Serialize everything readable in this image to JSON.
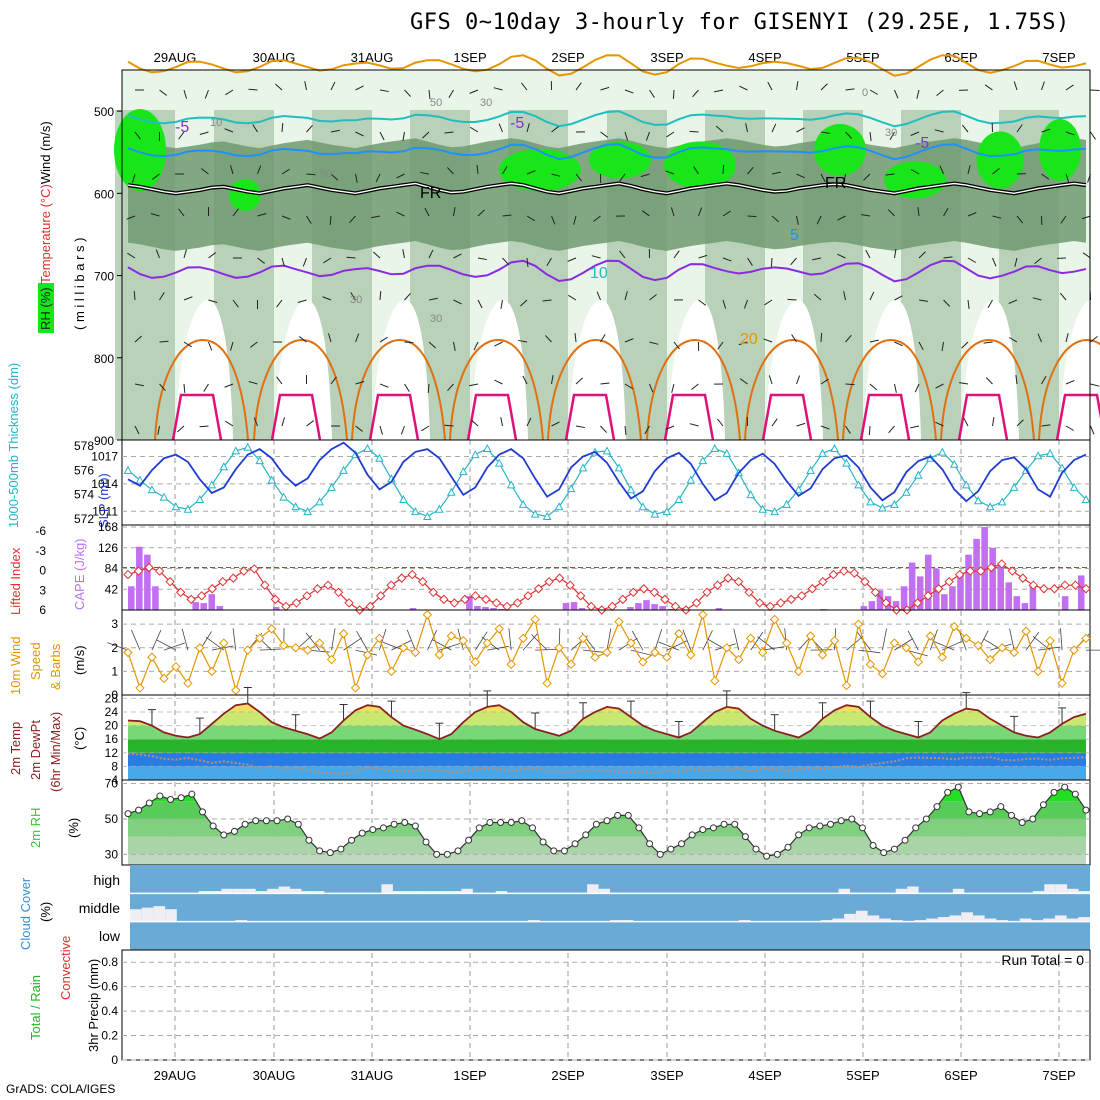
{
  "title": "GFS 0~10day 3-hourly for GISENYI (29.25E, 1.75S)",
  "credit": "GrADS: COLA/IGES",
  "colors": {
    "rh_dark": "#18e618",
    "rh_mid": "#73b573",
    "temp_neg": "#8a2be2",
    "freezing": "#000000",
    "temp5": "#1e90ff",
    "temp10": "#1fbfbf",
    "temp20": "#e69500",
    "temp30": "#e07010",
    "slp": "#1e3cd2",
    "thickness": "#27b5c7",
    "cape": "#c070f0",
    "lifted": "#e03030",
    "wind10m": "#e69500",
    "temp2m": "#8b2020",
    "dew2m": "#707070",
    "rh2m": "#2ecc2e",
    "cloud": "#6aaad6",
    "cloud_clear": "#eeeef4"
  },
  "chart_data": [
    {
      "type": "heatmap",
      "name": "upper-air",
      "x_dates": [
        "29AUG",
        "30AUG",
        "31AUG",
        "1SEP",
        "2SEP",
        "3SEP",
        "4SEP",
        "5SEP",
        "6SEP",
        "7SEP"
      ],
      "ylim": [
        900,
        450
      ],
      "yticks": [
        500,
        600,
        700,
        800,
        900
      ],
      "ylabel_parts": [
        "RH (%)",
        "Temperature (°C)",
        "Wind (m/s)"
      ],
      "ylabel_unit": "( m i l l i b a r s )",
      "contour_labels": [
        "-5",
        "-5",
        "-5",
        "FR",
        "FR",
        "5",
        "10",
        "20",
        "50",
        "30",
        "10",
        "30",
        "50",
        "30",
        "30",
        "0"
      ],
      "freezing_level_mb": [
        590,
        592,
        595,
        598,
        600,
        598,
        596,
        593,
        592,
        595,
        598,
        600,
        597,
        594,
        592,
        590,
        593,
        596,
        598,
        600,
        597,
        594,
        592,
        590,
        588,
        592,
        596,
        599,
        598,
        595,
        592,
        590,
        588,
        590,
        594,
        598,
        600,
        597,
        594,
        592,
        590,
        588,
        591,
        595,
        598,
        600,
        597,
        594,
        592,
        590,
        588,
        590,
        593,
        596,
        598,
        597,
        594,
        592,
        590,
        589,
        590,
        593,
        596,
        598,
        600,
        597,
        594,
        592,
        590,
        588,
        590,
        593,
        596,
        598,
        600,
        597,
        594,
        592,
        590,
        588,
        590
      ]
    },
    {
      "type": "line",
      "name": "slp-thickness",
      "ylabel_left": "1000-500mb Thickness (dm)",
      "ylabel_right": "SLP (mb)",
      "yticks_thickness": [
        572,
        574,
        576,
        578
      ],
      "yticks_slp": [
        1011,
        1014,
        1017
      ],
      "series": [
        {
          "name": "SLP",
          "values": [
            1014.5,
            1013.8,
            1015.5,
            1016.8,
            1017.2,
            1016.4,
            1014.5,
            1013.0,
            1013.6,
            1015.6,
            1017.2,
            1017.8,
            1016.8,
            1015.0,
            1013.8,
            1014.6,
            1016.6,
            1017.8,
            1018.5,
            1017.4,
            1015.0,
            1013.4,
            1014.2,
            1016.4,
            1017.5,
            1017.8,
            1016.8,
            1014.8,
            1012.8,
            1013.6,
            1015.8,
            1017.2,
            1017.8,
            1016.8,
            1014.6,
            1012.6,
            1013.4,
            1015.8,
            1017.0,
            1017.5,
            1016.3,
            1014.2,
            1012.4,
            1013.2,
            1015.4,
            1016.8,
            1017.4,
            1016.2,
            1014.0,
            1012.2,
            1013.0,
            1015.2,
            1016.6,
            1017.3,
            1016.2,
            1014.3,
            1012.7,
            1013.5,
            1015.6,
            1016.8,
            1017.1,
            1015.8,
            1013.6,
            1012.2,
            1013.1,
            1015.3,
            1016.5,
            1017.0,
            1015.6,
            1013.4,
            1012.1,
            1013.2,
            1015.4,
            1016.6,
            1016.9,
            1015.6,
            1013.4,
            1012.6,
            1015.2,
            1016.6,
            1017.2
          ]
        },
        {
          "name": "Thickness",
          "values": [
            576.0,
            575.2,
            574.4,
            573.8,
            573.0,
            572.8,
            573.6,
            574.8,
            576.3,
            577.6,
            577.9,
            576.8,
            575.2,
            573.8,
            573.0,
            572.6,
            573.4,
            574.6,
            576.0,
            577.3,
            577.8,
            577.0,
            575.3,
            573.6,
            572.6,
            572.2,
            572.8,
            574.2,
            575.9,
            577.3,
            577.8,
            576.6,
            574.8,
            573.2,
            572.4,
            572.2,
            573.0,
            574.5,
            576.2,
            577.5,
            577.6,
            576.2,
            574.4,
            573.0,
            572.4,
            572.6,
            573.6,
            575.2,
            576.8,
            577.8,
            577.4,
            575.8,
            574.0,
            572.8,
            572.6,
            573.2,
            574.4,
            576.0,
            577.4,
            577.8,
            576.6,
            574.8,
            573.4,
            572.9,
            573.2,
            574.2,
            575.6,
            577.0,
            577.5,
            576.5,
            574.8,
            573.5,
            573.0,
            573.4,
            574.6,
            576.0,
            577.2,
            577.4,
            576.2,
            574.6,
            573.6
          ]
        }
      ]
    },
    {
      "type": "bar",
      "name": "cape-lifted-index",
      "ylabel_left": "Lifted Index",
      "ylabel_right": "CAPE (J/kg)",
      "yticks_li": [
        "-6",
        "-3",
        "0",
        "3",
        "6"
      ],
      "yticks_cape": [
        42,
        84,
        126,
        168
      ],
      "cape": [
        48,
        128,
        112,
        48,
        0,
        0,
        0,
        0,
        16,
        14,
        32,
        8,
        0,
        0,
        0,
        0,
        0,
        0,
        6,
        0,
        0,
        0,
        0,
        0,
        0,
        0,
        0,
        0,
        0,
        0,
        0,
        0,
        0,
        0,
        0,
        4,
        0,
        0,
        0,
        0,
        0,
        0,
        28,
        8,
        6,
        4,
        2,
        0,
        0,
        0,
        0,
        0,
        0,
        0,
        14,
        16,
        4,
        0,
        0,
        0,
        0,
        0,
        6,
        14,
        20,
        12,
        8,
        2,
        0,
        0,
        0,
        0,
        0,
        4,
        0,
        0,
        0,
        0,
        0,
        0,
        0,
        0,
        0,
        0,
        0,
        0,
        2,
        0,
        0,
        0,
        0,
        8,
        18,
        40,
        28,
        18,
        48,
        96,
        68,
        112,
        84,
        32,
        48,
        76,
        112,
        144,
        168,
        126,
        96,
        56,
        28,
        14,
        48,
        0,
        0,
        0,
        28,
        0,
        70
      ],
      "lifted": [
        1.0,
        0.5,
        0.0,
        0.5,
        2.0,
        3.5,
        4.5,
        4.0,
        3.0,
        2.0,
        1.5,
        0.5,
        0.2,
        2.5,
        4.5,
        5.5,
        5.0,
        4.0,
        3.0,
        2.5,
        3.5,
        5.0,
        6.0,
        5.5,
        4.0,
        2.5,
        1.5,
        1.0,
        2.0,
        3.5,
        4.5,
        5.0,
        4.5,
        4.0,
        4.5,
        5.0,
        5.5,
        5.0,
        4.0,
        3.0,
        2.0,
        1.5,
        2.5,
        4.0,
        5.5,
        6.0,
        5.5,
        4.5,
        3.5,
        3.0,
        3.5,
        4.5,
        5.5,
        6.0,
        5.0,
        3.5,
        2.5,
        1.5,
        2.0,
        3.5,
        5.0,
        5.5,
        5.0,
        4.5,
        4.0,
        3.0,
        2.0,
        1.0,
        0.5,
        0.8,
        2.0,
        3.5,
        5.0,
        6.0,
        6.0,
        5.0,
        4.0,
        3.0,
        2.0,
        1.0,
        0.5,
        0.5,
        0.0,
        -0.5,
        0.5,
        1.5,
        2.5,
        3.0,
        3.0,
        2.5,
        2.5,
        3.0
      ]
    },
    {
      "type": "line",
      "name": "wind-10m",
      "ylabel": "10m Wind Speed & Barbs (m/s)",
      "yticks": [
        0,
        1,
        2,
        3
      ],
      "ylim": [
        0,
        3.6
      ],
      "values": [
        1.8,
        0.3,
        1.6,
        0.7,
        1.2,
        0.5,
        2.0,
        1.0,
        2.2,
        0.2,
        1.9,
        2.4,
        2.8,
        2.1,
        2.0,
        1.9,
        2.2,
        1.5,
        2.6,
        0.3,
        1.7,
        2.4,
        1.0,
        2.0,
        1.8,
        3.4,
        1.7,
        2.5,
        2.3,
        1.4,
        2.2,
        2.8,
        1.3,
        2.4,
        3.2,
        0.5,
        2.0,
        1.3,
        2.4,
        1.6,
        1.8,
        3.1,
        2.2,
        1.4,
        1.8,
        1.6,
        2.6,
        1.7,
        3.4,
        0.6,
        2.0,
        1.5,
        2.4,
        1.8,
        3.2,
        2.2,
        1.0,
        2.5,
        1.7,
        2.3,
        0.4,
        3.0,
        1.3,
        0.9,
        2.2,
        2.0,
        1.4,
        2.5,
        1.6,
        2.9,
        2.4,
        2.1,
        1.5,
        2.0,
        1.8,
        2.7,
        1.0,
        2.3,
        0.5,
        1.9,
        2.4
      ]
    },
    {
      "type": "area",
      "name": "temp-2m",
      "ylabel": "2m Temp 2m DewPt (6hr Min/Max) (°C)",
      "yticks": [
        4,
        8,
        12,
        16,
        20,
        24,
        28
      ],
      "ylim": [
        4,
        29
      ],
      "temp": [
        21.5,
        21.3,
        20.0,
        18.0,
        17.0,
        16.5,
        17.5,
        20.5,
        23.5,
        26.0,
        26.5,
        24.0,
        21.0,
        19.5,
        18.5,
        17.5,
        16.2,
        18.0,
        21.5,
        24.5,
        26.0,
        25.5,
        22.5,
        20.0,
        18.8,
        17.5,
        16.0,
        17.5,
        21.0,
        24.0,
        25.5,
        26.0,
        24.0,
        21.0,
        19.0,
        18.0,
        17.0,
        18.5,
        22.0,
        24.0,
        25.5,
        25.0,
        22.5,
        20.0,
        18.5,
        17.5,
        16.5,
        18.0,
        21.0,
        24.0,
        25.5,
        25.0,
        22.0,
        20.0,
        18.5,
        17.5,
        16.5,
        18.5,
        22.0,
        24.5,
        26.0,
        25.5,
        22.5,
        20.0,
        18.5,
        17.5,
        16.5,
        18.0,
        21.5,
        23.5,
        25.0,
        24.5,
        22.0,
        20.0,
        18.0,
        17.0,
        16.5,
        18.0,
        20.5,
        22.5,
        23.5
      ],
      "dewpt": [
        11.8,
        11.5,
        11.0,
        10.2,
        10.0,
        10.5,
        9.8,
        9.0,
        9.5,
        9.0,
        8.5,
        7.5,
        8.0,
        7.4,
        7.6,
        6.8,
        6.2,
        6.0,
        5.8,
        6.5,
        7.8,
        7.2,
        6.8,
        6.5,
        6.8,
        7.1,
        6.9,
        6.2,
        6.5,
        7.2,
        7.5,
        7.2,
        6.6,
        7.2,
        7.5,
        6.6,
        6.4,
        6.3,
        6.9,
        7.0,
        6.8,
        6.5,
        6.2,
        6.6,
        6.0,
        6.8,
        6.4,
        7.5,
        6.8,
        7.1,
        6.9,
        7.4,
        6.6,
        7.4,
        7.3,
        6.5,
        7.3,
        7.6,
        7.2,
        7.8,
        8.2,
        7.8,
        8.6,
        9.0,
        9.5,
        10.4,
        10.6,
        10.5,
        10.4,
        10.1,
        10.6,
        10.5,
        10.7,
        9.9,
        9.8,
        10.2,
        10.3,
        9.9,
        10.4,
        10.5,
        10.7
      ]
    },
    {
      "type": "area",
      "name": "rh-2m",
      "ylabel": "2m RH (%)",
      "yticks": [
        30,
        50,
        70
      ],
      "ylim": [
        24,
        72
      ],
      "values": [
        53,
        55,
        59,
        63,
        61,
        62,
        64,
        54,
        46,
        41,
        43,
        47,
        49,
        49,
        49,
        50,
        47,
        38,
        32,
        31,
        33,
        38,
        42,
        44,
        45,
        47,
        48,
        46,
        37,
        30,
        30,
        32,
        38,
        45,
        48,
        48,
        48,
        49,
        45,
        37,
        32,
        32,
        36,
        41,
        47,
        49,
        52,
        52,
        45,
        36,
        30,
        33,
        36,
        41,
        44,
        45,
        47,
        47,
        40,
        33,
        29,
        30,
        34,
        41,
        45,
        46,
        47,
        49,
        50,
        45,
        35,
        31,
        33,
        38,
        45,
        50,
        57,
        65,
        68,
        54,
        53,
        54,
        57,
        52,
        48,
        50,
        58,
        65,
        68,
        64,
        55
      ]
    },
    {
      "type": "heatmap",
      "name": "cloud-cover",
      "ylabel": "Cloud Cover (%)",
      "rows": [
        "high",
        "middle",
        "low"
      ],
      "high": [
        0,
        0,
        0,
        0,
        0,
        0,
        5,
        5,
        10,
        10,
        10,
        5,
        10,
        15,
        10,
        5,
        5,
        0,
        0,
        0,
        0,
        0,
        20,
        5,
        5,
        5,
        5,
        5,
        5,
        10,
        0,
        0,
        5,
        0,
        0,
        0,
        0,
        0,
        0,
        0,
        20,
        10,
        0,
        0,
        0,
        0,
        0,
        0,
        0,
        0,
        0,
        0,
        0,
        0,
        0,
        0,
        0,
        0,
        0,
        0,
        0,
        0,
        10,
        0,
        0,
        0,
        0,
        10,
        15,
        0,
        0,
        0,
        10,
        0,
        0,
        0,
        0,
        0,
        0,
        5,
        20,
        20,
        10,
        5
      ],
      "middle": [
        40,
        45,
        50,
        40,
        0,
        0,
        0,
        0,
        0,
        5,
        0,
        0,
        0,
        0,
        0,
        0,
        0,
        0,
        0,
        0,
        0,
        0,
        0,
        0,
        0,
        0,
        0,
        0,
        0,
        0,
        0,
        0,
        0,
        0,
        5,
        0,
        0,
        0,
        0,
        0,
        0,
        5,
        5,
        0,
        0,
        0,
        0,
        0,
        0,
        0,
        0,
        0,
        5,
        0,
        0,
        0,
        0,
        0,
        0,
        5,
        10,
        25,
        35,
        20,
        10,
        5,
        0,
        5,
        10,
        15,
        20,
        30,
        20,
        10,
        5,
        0,
        10,
        5,
        10,
        20,
        10,
        15
      ]
    },
    {
      "type": "bar",
      "name": "precip-3hr",
      "ylabel_left": "Total / Rain",
      "ylabel_left2": "Convective",
      "ylabel": "3hr Precip (mm)",
      "yticks": [
        "0",
        "0.2",
        "0.4",
        "0.6",
        "0.8"
      ],
      "ylim": [
        0,
        0.9
      ],
      "run_total_label": "Run Total = 0",
      "values": []
    }
  ]
}
